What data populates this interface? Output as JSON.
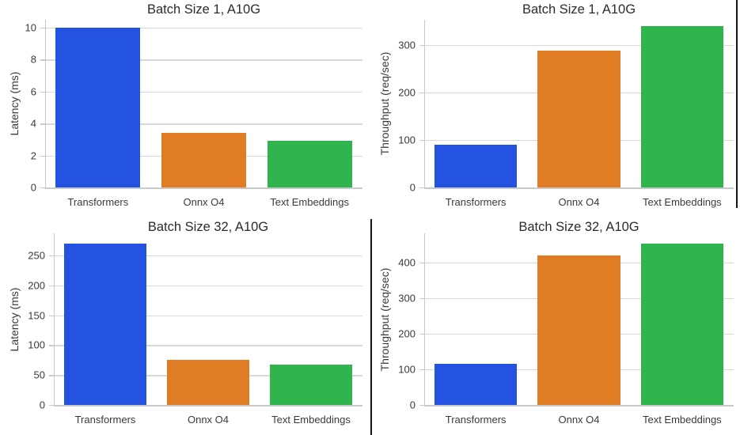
{
  "colors": {
    "bar_palette": [
      "#2453E1",
      "#E07C23",
      "#2FB44E"
    ],
    "grid": "#d9d9d9",
    "spine": "#c9c9c9",
    "tick_text": "#3a3a3a",
    "title_text": "#2b2b2b",
    "divider": "#111111",
    "background": "#ffffff"
  },
  "chart_data": [
    {
      "type": "bar",
      "title": "Batch Size 1, A10G",
      "xlabel": "",
      "ylabel": "Latency (ms)",
      "categories": [
        "Transformers",
        "Onnx O4",
        "Text Embeddings"
      ],
      "values": [
        10.0,
        3.4,
        2.9
      ],
      "yticks": [
        0,
        2,
        4,
        6,
        8,
        10
      ],
      "ylim": [
        0,
        10.5
      ],
      "grid": "horizontal-major",
      "legend": "none"
    },
    {
      "type": "bar",
      "title": "Batch Size 1, A10G",
      "xlabel": "",
      "ylabel": "Throughput (req/sec)",
      "categories": [
        "Transformers",
        "Onnx O4",
        "Text Embeddings"
      ],
      "values": [
        90,
        288,
        340
      ],
      "yticks": [
        0,
        100,
        200,
        300
      ],
      "ylim": [
        0,
        353
      ],
      "grid": "horizontal-major",
      "legend": "none"
    },
    {
      "type": "bar",
      "title": "Batch Size 32, A10G",
      "xlabel": "",
      "ylabel": "Latency (ms)",
      "categories": [
        "Transformers",
        "Onnx O4",
        "Text Embeddings"
      ],
      "values": [
        270,
        75,
        68
      ],
      "yticks": [
        0,
        50,
        100,
        150,
        200,
        250
      ],
      "ylim": [
        0,
        287
      ],
      "grid": "horizontal-major",
      "legend": "none"
    },
    {
      "type": "bar",
      "title": "Batch Size 32, A10G",
      "xlabel": "",
      "ylabel": "Throughput (req/sec)",
      "categories": [
        "Transformers",
        "Onnx O4",
        "Text Embeddings"
      ],
      "values": [
        115,
        418,
        453
      ],
      "yticks": [
        0,
        100,
        200,
        300,
        400
      ],
      "ylim": [
        0,
        481
      ],
      "grid": "horizontal-major",
      "legend": "none"
    }
  ]
}
